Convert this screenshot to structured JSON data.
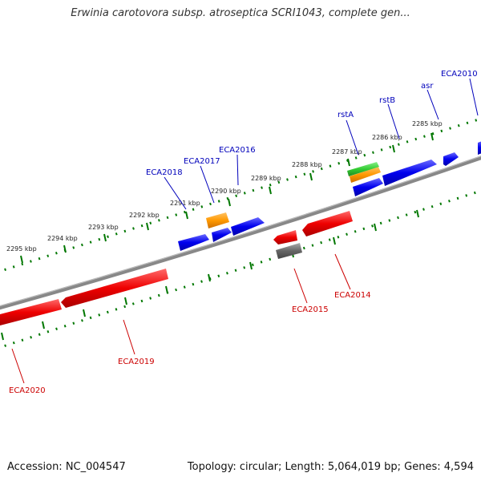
{
  "title": "Erwinia carotovora subsp. atroseptica SCRI1043, complete gen...",
  "footer": {
    "accession": "Accession: NC_004547",
    "summary": "Topology: circular; Length: 5,064,019 bp; Genes: 4,594"
  },
  "colors": {
    "forward_gene": "#0000ee",
    "reverse_gene": "#ee0000",
    "rna_green": "#33cc33",
    "orange_feature": "#ff9900",
    "pseudo_gray": "#666666",
    "backbone": "#888888",
    "tick": "#007700",
    "forward_label": "#0000bb",
    "reverse_label": "#cc0000"
  },
  "ticks": [
    {
      "label": "2285 kbp"
    },
    {
      "label": "2286 kbp"
    },
    {
      "label": "2287 kbp"
    },
    {
      "label": "2288 kbp"
    },
    {
      "label": "2289 kbp"
    },
    {
      "label": "2290 kbp"
    },
    {
      "label": "2291 kbp"
    },
    {
      "label": "2292 kbp"
    },
    {
      "label": "2293 kbp"
    },
    {
      "label": "2294 kbp"
    },
    {
      "label": "2295 kbp"
    }
  ],
  "forward_labels": [
    "ECA2010",
    "asr",
    "rstB",
    "rstA",
    "ECA2016",
    "ECA2017",
    "ECA2018"
  ],
  "reverse_labels": [
    "ECA2014",
    "ECA2015",
    "ECA2019",
    "ECA2020"
  ]
}
